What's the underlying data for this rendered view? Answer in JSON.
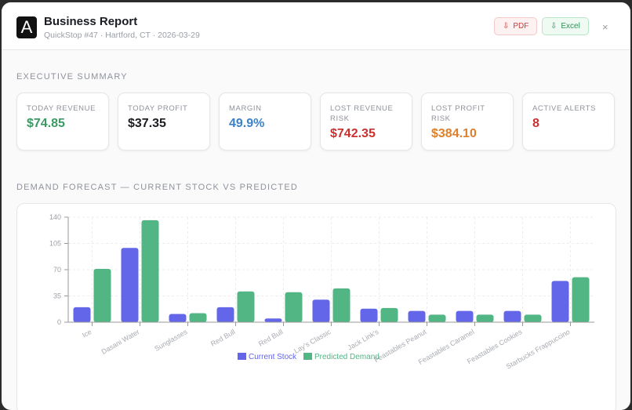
{
  "header": {
    "title": "Business Report",
    "subtitle": "QuickStop #47 · Hartford, CT · 2026-03-29",
    "logo_letter": "A",
    "pdf_label": "PDF",
    "excel_label": "Excel",
    "close": "×"
  },
  "summary": {
    "heading": "EXECUTIVE SUMMARY",
    "cards": [
      {
        "label": "TODAY REVENUE",
        "value": "$74.85",
        "color": "#3a9a62"
      },
      {
        "label": "TODAY PROFIT",
        "value": "$37.35",
        "color": "#1b1d22"
      },
      {
        "label": "MARGIN",
        "value": "49.9%",
        "color": "#3b82c8"
      },
      {
        "label": "LOST REVENUE RISK",
        "value": "$742.35",
        "color": "#cc2f2f"
      },
      {
        "label": "LOST PROFIT RISK",
        "value": "$384.10",
        "color": "#de7f2a"
      },
      {
        "label": "ACTIVE ALERTS",
        "value": "8",
        "color": "#cc2f2f"
      }
    ]
  },
  "forecast": {
    "heading": "DEMAND FORECAST — CURRENT STOCK VS PREDICTED"
  },
  "chart_data": {
    "type": "bar",
    "categories": [
      "Ice",
      "Dasani Water",
      "Sunglasses",
      "Red Bull",
      "Red Bull",
      "Lay's Classic",
      "Jack Link's",
      "Feastables Peanut",
      "Feastables Caramel",
      "Feastables Cookies",
      "Starbucks Frappuccino"
    ],
    "series": [
      {
        "name": "Current Stock",
        "color": "#6366e8",
        "values": [
          20,
          99,
          11,
          20,
          5,
          30,
          18,
          15,
          15,
          15,
          55
        ]
      },
      {
        "name": "Predicted Demand",
        "color": "#52b684",
        "values": [
          71,
          136,
          12,
          41,
          40,
          45,
          19,
          10,
          10,
          10,
          60
        ]
      }
    ],
    "yticks": [
      0,
      35,
      70,
      105,
      140
    ],
    "ylim": [
      0,
      140
    ],
    "grid": true,
    "legend": "bottom"
  }
}
